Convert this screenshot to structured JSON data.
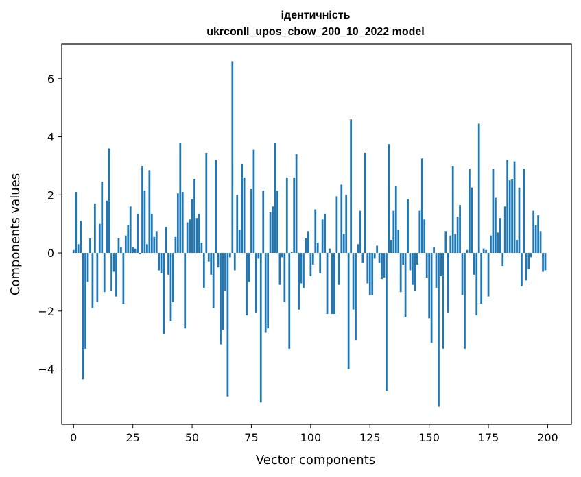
{
  "chart_data": {
    "type": "bar",
    "title": "ідентичність",
    "subtitle": "ukrconll_upos_cbow_200_10_2022 model",
    "xlabel": "Vector components",
    "ylabel": "Components values",
    "xlim": [
      -5,
      210
    ],
    "ylim": [
      -5.9,
      7.2
    ],
    "x_ticks": [
      0,
      25,
      50,
      75,
      100,
      125,
      150,
      175,
      200
    ],
    "x_tick_labels": [
      "0",
      "25",
      "50",
      "75",
      "100",
      "125",
      "150",
      "175",
      "200"
    ],
    "y_ticks": [
      -4,
      -2,
      0,
      2,
      4,
      6
    ],
    "y_tick_labels": [
      "−4",
      "−2",
      "0",
      "2",
      "4",
      "6"
    ],
    "grid": false,
    "bar_color": "#1f77b4",
    "values": [
      0.1,
      2.1,
      0.3,
      1.1,
      -4.35,
      -3.3,
      -1.0,
      0.5,
      -1.9,
      1.7,
      -1.7,
      1.0,
      2.45,
      -1.35,
      1.8,
      3.6,
      -1.3,
      -0.65,
      -1.5,
      0.5,
      0.2,
      -1.75,
      0.6,
      0.95,
      1.6,
      0.2,
      0.15,
      1.35,
      -0.05,
      3.0,
      2.15,
      0.3,
      2.85,
      1.35,
      0.55,
      0.75,
      -0.6,
      -0.7,
      -2.8,
      0.9,
      -0.75,
      -2.35,
      -1.7,
      0.55,
      2.05,
      3.8,
      2.1,
      -2.6,
      1.05,
      1.15,
      1.85,
      2.55,
      1.2,
      1.35,
      0.35,
      -1.2,
      3.45,
      -0.3,
      -0.75,
      -1.9,
      3.2,
      -0.5,
      -3.15,
      -2.65,
      -1.3,
      -4.95,
      -0.15,
      6.6,
      -0.6,
      2.0,
      0.8,
      3.05,
      2.6,
      -2.15,
      -1.0,
      2.2,
      3.55,
      -2.05,
      -0.2,
      -5.15,
      2.15,
      -2.75,
      -2.6,
      1.4,
      1.6,
      3.8,
      2.15,
      -1.1,
      -0.15,
      -1.7,
      2.6,
      -3.3,
      0.05,
      2.6,
      3.4,
      -1.95,
      -1.05,
      -1.2,
      0.5,
      0.75,
      -0.8,
      -0.4,
      1.5,
      0.35,
      -0.7,
      1.15,
      1.35,
      -2.1,
      0.15,
      -2.1,
      -2.1,
      1.95,
      -1.1,
      2.35,
      0.65,
      2.0,
      -4.0,
      4.6,
      -1.95,
      -3.0,
      0.3,
      1.45,
      -0.35,
      3.45,
      -1.05,
      -1.45,
      -1.45,
      -0.2,
      0.25,
      -0.35,
      -0.9,
      -0.85,
      -4.75,
      3.75,
      0.45,
      1.45,
      2.3,
      0.8,
      -1.35,
      -0.4,
      -2.2,
      1.85,
      -0.6,
      -1.1,
      -1.3,
      -0.4,
      1.45,
      3.25,
      1.15,
      -0.85,
      -2.25,
      -3.1,
      0.2,
      -1.2,
      -5.3,
      -0.8,
      -3.3,
      0.75,
      -2.05,
      0.6,
      3.0,
      0.65,
      1.25,
      1.65,
      -1.45,
      -3.3,
      0.1,
      2.9,
      2.25,
      -0.75,
      -2.15,
      4.45,
      -1.75,
      0.15,
      0.1,
      -1.5,
      0.6,
      2.9,
      1.9,
      0.7,
      1.2,
      -0.45,
      1.6,
      3.2,
      2.5,
      2.55,
      3.15,
      0.45,
      2.25,
      -1.15,
      2.9,
      -0.95,
      -0.55,
      -0.15,
      1.45,
      0.95,
      1.3,
      0.75,
      -0.65,
      -0.6
    ]
  }
}
